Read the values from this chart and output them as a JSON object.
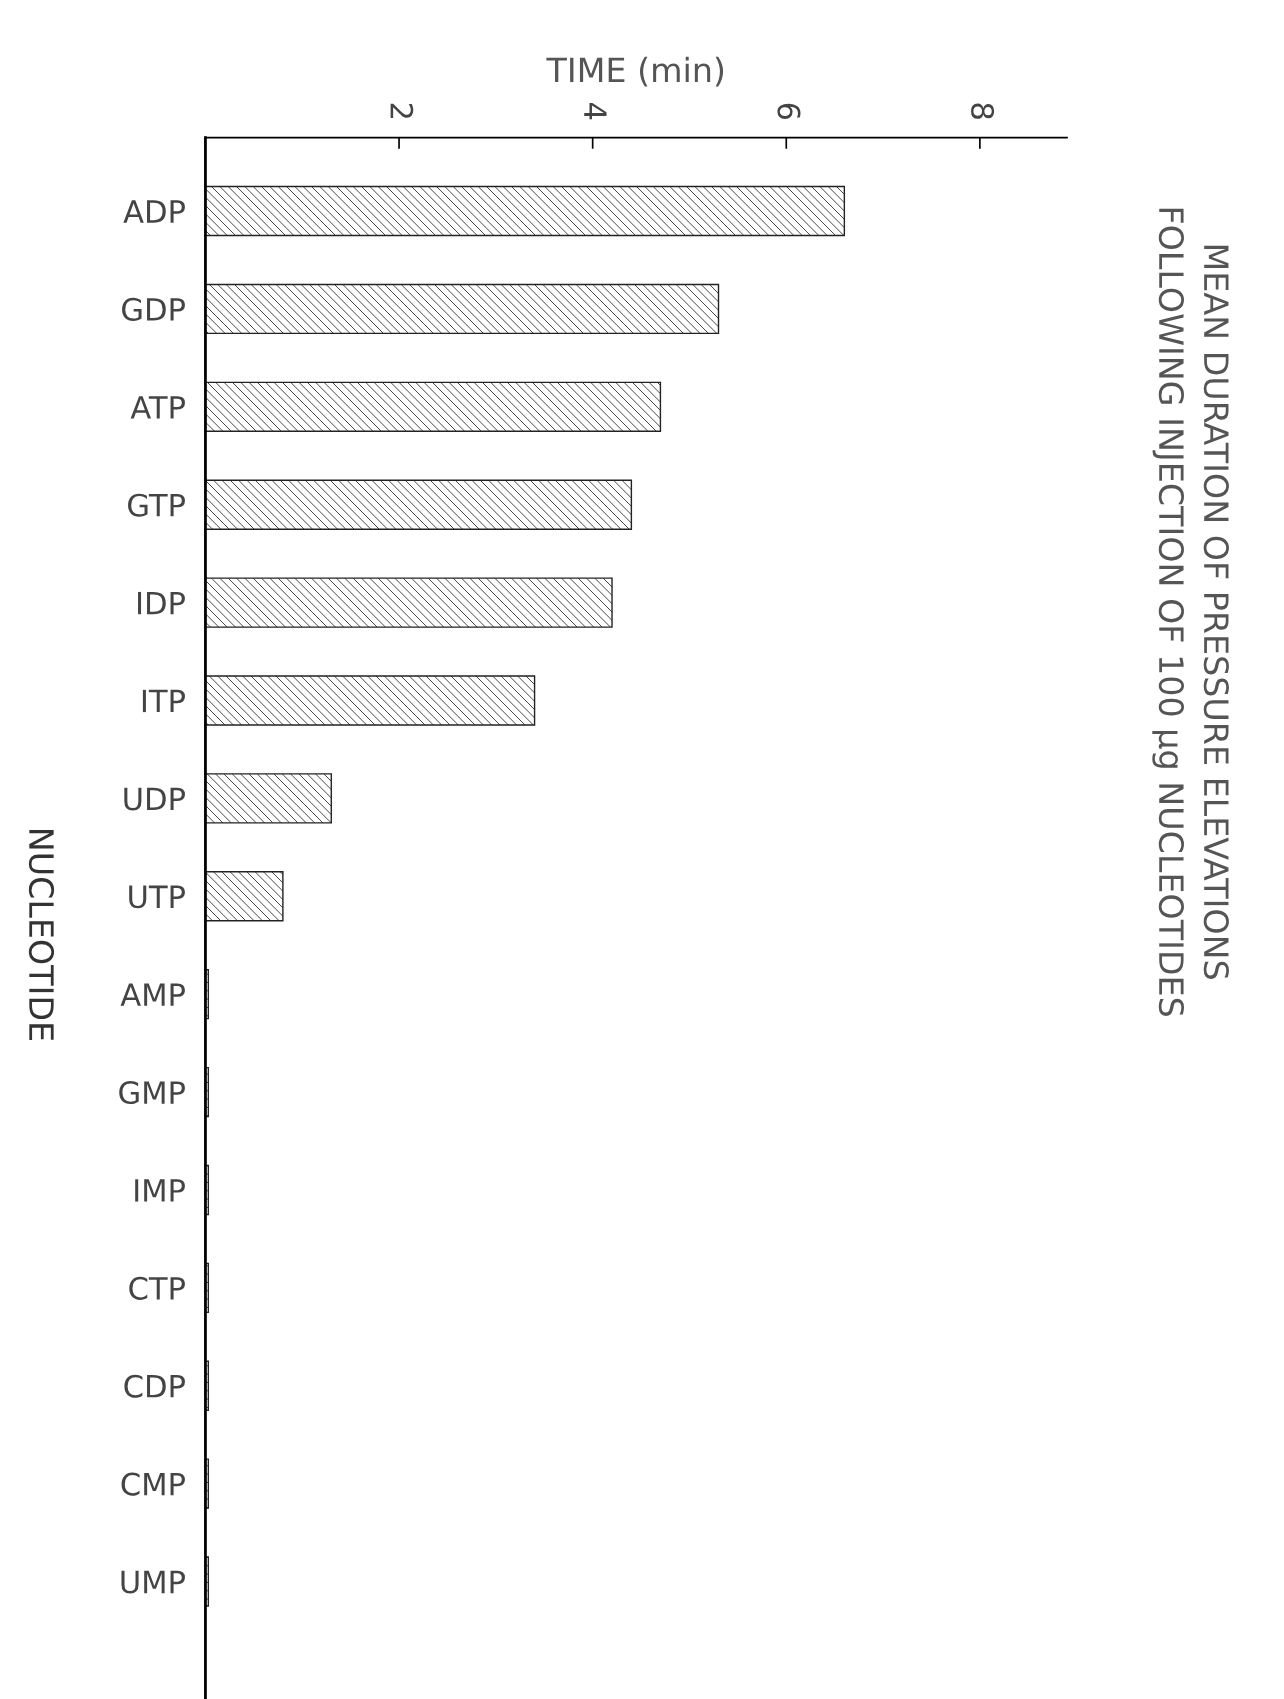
{
  "chart_data": {
    "type": "bar",
    "orientation": "horizontal",
    "title": "MEAN DURATION OF PRESSURE ELEVATIONS",
    "subtitle": "FOLLOWING INJECTION OF 100 μg NUCLEOTIDES",
    "xlabel": "TIME (min)",
    "ylabel": "NUCLEOTIDE",
    "categories": [
      "ADP",
      "GDP",
      "ATP",
      "GTP",
      "IDP",
      "ITP",
      "UDP",
      "UTP",
      "AMP",
      "GMP",
      "IMP",
      "CTP",
      "CDP",
      "CMP",
      "UMP"
    ],
    "values": [
      6.6,
      5.3,
      4.7,
      4.4,
      4.2,
      3.4,
      1.3,
      0.8,
      0.03,
      0.03,
      0.03,
      0.03,
      0.03,
      0.03,
      0.03
    ],
    "color": "#222222",
    "xlim": [
      0,
      8.9
    ],
    "xticks": [
      2,
      4,
      6,
      8
    ],
    "grid": false,
    "legend": false
  }
}
